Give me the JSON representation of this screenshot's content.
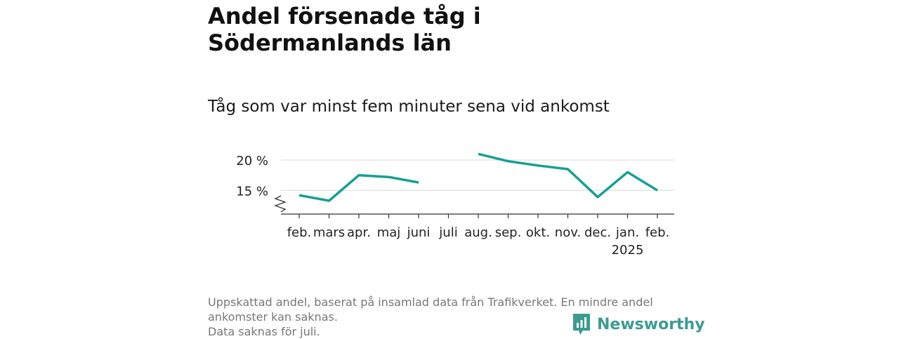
{
  "header": {
    "title": "Andel försenade tåg i Södermanlands län",
    "subtitle": "Tåg som var minst fem minuter sena vid ankomst"
  },
  "chart_data": {
    "type": "line",
    "categories": [
      "feb.",
      "mars",
      "apr.",
      "maj",
      "juni",
      "juli",
      "aug.",
      "sep.",
      "okt.",
      "nov.",
      "dec.",
      "jan.",
      "feb."
    ],
    "category_sublabels": [
      "",
      "",
      "",
      "",
      "",
      "",
      "",
      "",
      "",
      "",
      "",
      "2025",
      ""
    ],
    "series": [
      {
        "values": [
          14.2,
          13.3,
          17.5,
          17.2,
          16.3,
          null,
          21.0,
          19.8,
          19.1,
          18.5,
          13.9,
          18.0,
          15.0
        ]
      }
    ],
    "y_ticks": [
      15,
      20
    ],
    "y_tick_labels": [
      "15 %",
      "20 %"
    ],
    "ylim": [
      11.1,
      21.5
    ],
    "y_axis_break": true,
    "grid": true,
    "color": "#16a093"
  },
  "footer": {
    "note_line1": "Uppskattad andel, baserat på insamlad data från Trafikverket. En mindre andel",
    "note_line2": "ankomster kan saknas.",
    "note_line3": "Data saknas för juli.",
    "brand": "Newsworthy"
  }
}
